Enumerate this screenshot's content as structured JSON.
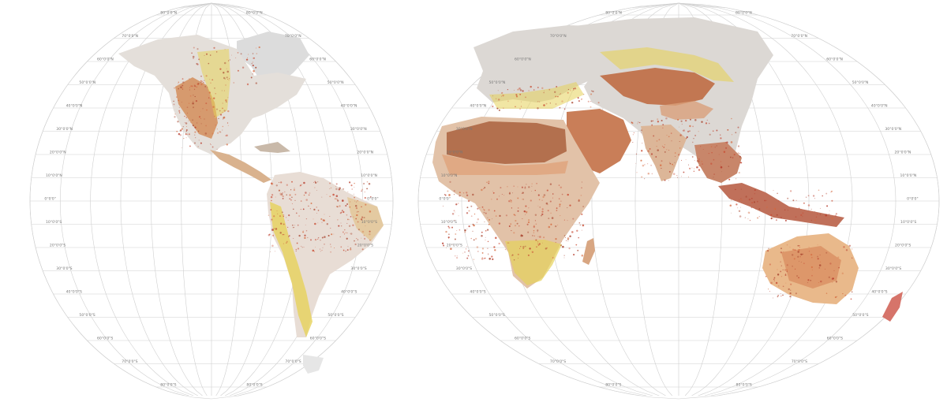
{
  "colors": {
    "background": "#ffffff",
    "graticule": "#cfcfcf",
    "label": "#777777",
    "land_gray": "#c9c9c9",
    "land_light": "#e6e1dc",
    "arid_brown": "#b06a48",
    "arid_orange": "#d88a5a",
    "semi_yellow": "#e6d25a",
    "pale_orange": "#e9b98b",
    "red_speckle": "#c84a32"
  },
  "graticule": {
    "left_lobe_labels": [
      {
        "text": "80°0'0\"N",
        "dn": "lat-label-80n-left-a"
      },
      {
        "text": "80°0'0\"N",
        "dn": "lat-label-80n-left-b"
      },
      {
        "text": "70°0'0\"N",
        "dn": "lat-label-70n-left-a"
      },
      {
        "text": "70°0'0\"N",
        "dn": "lat-label-70n-left-b"
      },
      {
        "text": "60°0'0\"N",
        "dn": "lat-label-60n-left-a"
      },
      {
        "text": "60°0'0\"N",
        "dn": "lat-label-60n-left-b"
      },
      {
        "text": "50°0'0\"N",
        "dn": "lat-label-50n-left-a"
      },
      {
        "text": "50°0'0\"N",
        "dn": "lat-label-50n-left-b"
      },
      {
        "text": "40°0'0\"N",
        "dn": "lat-label-40n-left-a"
      },
      {
        "text": "40°0'0\"N",
        "dn": "lat-label-40n-left-b"
      },
      {
        "text": "30°0'0\"N",
        "dn": "lat-label-30n-left-a"
      },
      {
        "text": "30°0'0\"N",
        "dn": "lat-label-30n-left-b"
      },
      {
        "text": "20°0'0\"N",
        "dn": "lat-label-20n-left-a"
      },
      {
        "text": "20°0'0\"N",
        "dn": "lat-label-20n-left-b"
      },
      {
        "text": "10°0'0\"N",
        "dn": "lat-label-10n-left-a"
      },
      {
        "text": "10°0'0\"N",
        "dn": "lat-label-10n-left-b"
      },
      {
        "text": "0°0'0\"",
        "dn": "lat-label-0-left-a"
      },
      {
        "text": "0°0'0\"",
        "dn": "lat-label-0-left-b"
      },
      {
        "text": "10°0'0\"S",
        "dn": "lat-label-10s-left-a"
      },
      {
        "text": "10°0'0\"S",
        "dn": "lat-label-10s-left-b"
      },
      {
        "text": "20°0'0\"S",
        "dn": "lat-label-20s-left-a"
      },
      {
        "text": "20°0'0\"S",
        "dn": "lat-label-20s-left-b"
      },
      {
        "text": "30°0'0\"S",
        "dn": "lat-label-30s-left-a"
      },
      {
        "text": "30°0'0\"S",
        "dn": "lat-label-30s-left-b"
      },
      {
        "text": "40°0'0\"S",
        "dn": "lat-label-40s-left-a"
      },
      {
        "text": "40°0'0\"S",
        "dn": "lat-label-40s-left-b"
      },
      {
        "text": "50°0'0\"S",
        "dn": "lat-label-50s-left-a"
      },
      {
        "text": "50°0'0\"S",
        "dn": "lat-label-50s-left-b"
      },
      {
        "text": "60°0'0\"S",
        "dn": "lat-label-60s-left-a"
      },
      {
        "text": "60°0'0\"S",
        "dn": "lat-label-60s-left-b"
      },
      {
        "text": "70°0'0\"S",
        "dn": "lat-label-70s-left-a"
      },
      {
        "text": "70°0'0\"S",
        "dn": "lat-label-70s-left-b"
      },
      {
        "text": "80°0'0\"S",
        "dn": "lat-label-80s-left-a"
      },
      {
        "text": "80°0'0\"S",
        "dn": "lat-label-80s-left-b"
      }
    ],
    "right_lobe_labels": [
      {
        "text": "80°0'0\"N",
        "dn": "lat-label-80n-right-a"
      },
      {
        "text": "80°0'0\"N",
        "dn": "lat-label-80n-right-b"
      },
      {
        "text": "70°0'0\"N",
        "dn": "lat-label-70n-right-a"
      },
      {
        "text": "70°0'0\"N",
        "dn": "lat-label-70n-right-b"
      },
      {
        "text": "60°0'0\"N",
        "dn": "lat-label-60n-right-a"
      },
      {
        "text": "60°0'0\"N",
        "dn": "lat-label-60n-right-b"
      },
      {
        "text": "50°0'0\"N",
        "dn": "lat-label-50n-right-a"
      },
      {
        "text": "50°0'0\"N",
        "dn": "lat-label-50n-right-b"
      },
      {
        "text": "40°0'0\"N",
        "dn": "lat-label-40n-right-a"
      },
      {
        "text": "40°0'0\"N",
        "dn": "lat-label-40n-right-b"
      },
      {
        "text": "30°0'0\"N",
        "dn": "lat-label-30n-right-a"
      },
      {
        "text": "30°0'0\"N",
        "dn": "lat-label-30n-right-b"
      },
      {
        "text": "20°0'0\"N",
        "dn": "lat-label-20n-right-a"
      },
      {
        "text": "20°0'0\"N",
        "dn": "lat-label-20n-right-b"
      },
      {
        "text": "10°0'0\"N",
        "dn": "lat-label-10n-right-a"
      },
      {
        "text": "10°0'0\"N",
        "dn": "lat-label-10n-right-b"
      },
      {
        "text": "0°0'0\"",
        "dn": "lat-label-0-right-a"
      },
      {
        "text": "0°0'0\"",
        "dn": "lat-label-0-right-b"
      },
      {
        "text": "10°0'0\"S",
        "dn": "lat-label-10s-right-a"
      },
      {
        "text": "10°0'0\"S",
        "dn": "lat-label-10s-right-b"
      },
      {
        "text": "20°0'0\"S",
        "dn": "lat-label-20s-right-a"
      },
      {
        "text": "20°0'0\"S",
        "dn": "lat-label-20s-right-b"
      },
      {
        "text": "30°0'0\"S",
        "dn": "lat-label-30s-right-a"
      },
      {
        "text": "30°0'0\"S",
        "dn": "lat-label-30s-right-b"
      },
      {
        "text": "40°0'0\"S",
        "dn": "lat-label-40s-right-a"
      },
      {
        "text": "40°0'0\"S",
        "dn": "lat-label-40s-right-b"
      },
      {
        "text": "50°0'0\"S",
        "dn": "lat-label-50s-right-a"
      },
      {
        "text": "50°0'0\"S",
        "dn": "lat-label-50s-right-b"
      },
      {
        "text": "60°0'0\"S",
        "dn": "lat-label-60s-right-a"
      },
      {
        "text": "60°0'0\"S",
        "dn": "lat-label-60s-right-b"
      },
      {
        "text": "70°0'0\"S",
        "dn": "lat-label-70s-right-a"
      },
      {
        "text": "70°0'0\"S",
        "dn": "lat-label-70s-right-b"
      },
      {
        "text": "80°0'0\"S",
        "dn": "lat-label-80s-right-a"
      },
      {
        "text": "80°0'0\"S",
        "dn": "lat-label-80s-right-b"
      }
    ]
  }
}
